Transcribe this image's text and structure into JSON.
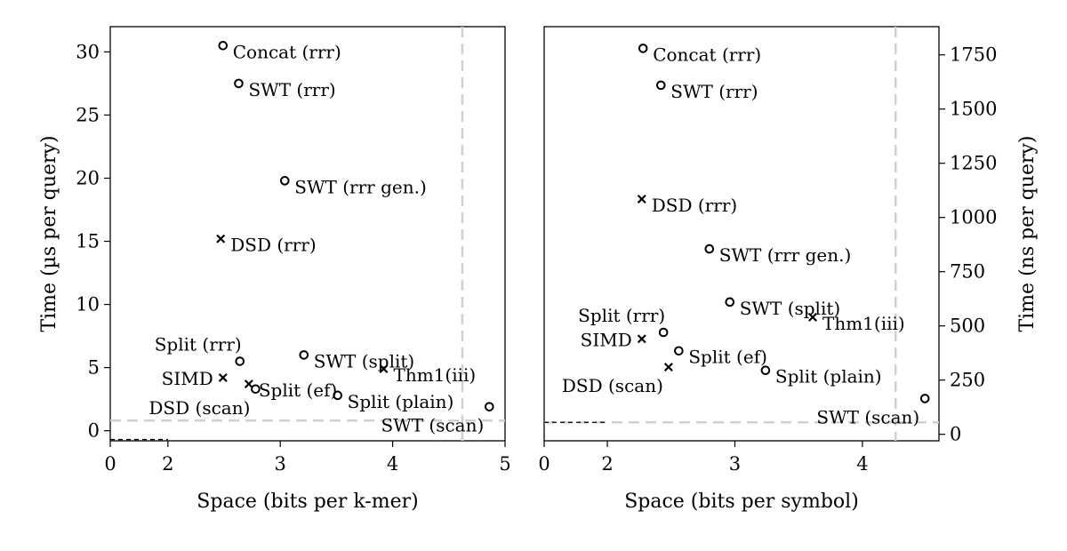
{
  "chart_data": [
    {
      "type": "scatter",
      "xlabel": "Space (bits per k-mer)",
      "ylabel": "Time (µs per query)",
      "xlim": [
        0,
        5
      ],
      "ylim": [
        -0.8,
        32
      ],
      "xticks": [
        "0",
        "2",
        "3",
        "4",
        "5"
      ],
      "yticks": [
        "0",
        "5",
        "10",
        "15",
        "20",
        "25",
        "30"
      ],
      "grid": false,
      "reference_lines": {
        "x": 4.62,
        "y": 0.8
      },
      "baseline_dashes": {
        "x_from": 0,
        "x_to": 2,
        "y": -0.7
      },
      "points": [
        {
          "x": 2.49,
          "y": 30.5,
          "label": "Concat (rrr)",
          "marker": "o",
          "label_pos": "right"
        },
        {
          "x": 2.63,
          "y": 27.5,
          "label": "SWT (rrr)",
          "marker": "o",
          "label_pos": "right"
        },
        {
          "x": 3.04,
          "y": 19.8,
          "label": "SWT (rrr gen.)",
          "marker": "o",
          "label_pos": "right"
        },
        {
          "x": 2.47,
          "y": 15.2,
          "label": "DSD (rrr)",
          "marker": "x",
          "label_pos": "right"
        },
        {
          "x": 2.64,
          "y": 5.5,
          "label": "Split (rrr)",
          "marker": "o",
          "label_pos": "above-left"
        },
        {
          "x": 3.21,
          "y": 6.0,
          "label": "SWT (split)",
          "marker": "o",
          "label_pos": "right"
        },
        {
          "x": 3.92,
          "y": 4.9,
          "label": "Thm1(iii)",
          "marker": "x",
          "label_pos": "right"
        },
        {
          "x": 2.49,
          "y": 4.2,
          "label": "SIMD",
          "marker": "x",
          "label_pos": "left"
        },
        {
          "x": 2.72,
          "y": 3.7,
          "label": "Split (ef)",
          "marker": "x",
          "label_pos": "right"
        },
        {
          "x": 2.78,
          "y": 3.3,
          "label": "DSD (scan)",
          "marker": "o",
          "label_pos": "below-left"
        },
        {
          "x": 3.51,
          "y": 2.8,
          "label": "Split (plain)",
          "marker": "o",
          "label_pos": "right"
        },
        {
          "x": 4.86,
          "y": 1.9,
          "label": "SWT (scan)",
          "marker": "o",
          "label_pos": "below-left"
        }
      ]
    },
    {
      "type": "scatter",
      "xlabel": "Space (bits per symbol)",
      "ylabel": "Time (ns per query)",
      "xlim": [
        0,
        4.6
      ],
      "ylim": [
        -30,
        1880
      ],
      "xticks": [
        "0",
        "2",
        "3",
        "4"
      ],
      "yticks": [
        "0",
        "250",
        "500",
        "750",
        "1000",
        "1250",
        "1500",
        "1750"
      ],
      "grid": false,
      "reference_lines": {
        "x": 4.26,
        "y": 55
      },
      "baseline_dashes": {
        "x_from": 0,
        "x_to": 2,
        "y": 55
      },
      "points": [
        {
          "x": 2.28,
          "y": 1780,
          "label": "Concat (rrr)",
          "marker": "o",
          "label_pos": "right"
        },
        {
          "x": 2.42,
          "y": 1610,
          "label": "SWT (rrr)",
          "marker": "o",
          "label_pos": "right"
        },
        {
          "x": 2.27,
          "y": 1085,
          "label": "DSD (rrr)",
          "marker": "x",
          "label_pos": "right"
        },
        {
          "x": 2.8,
          "y": 855,
          "label": "SWT (rrr gen.)",
          "marker": "o",
          "label_pos": "right"
        },
        {
          "x": 2.96,
          "y": 610,
          "label": "SWT (split)",
          "marker": "o",
          "label_pos": "right"
        },
        {
          "x": 3.61,
          "y": 540,
          "label": "Thm1(iii)",
          "marker": "x",
          "label_pos": "right"
        },
        {
          "x": 2.44,
          "y": 470,
          "label": "Split (rrr)",
          "marker": "o",
          "label_pos": "above-left"
        },
        {
          "x": 2.27,
          "y": 440,
          "label": "SIMD",
          "marker": "x",
          "label_pos": "left"
        },
        {
          "x": 2.56,
          "y": 385,
          "label": "Split (ef)",
          "marker": "o",
          "label_pos": "right"
        },
        {
          "x": 2.48,
          "y": 310,
          "label": "DSD (scan)",
          "marker": "x",
          "label_pos": "below-left"
        },
        {
          "x": 3.24,
          "y": 295,
          "label": "Split (plain)",
          "marker": "o",
          "label_pos": "right"
        },
        {
          "x": 4.49,
          "y": 165,
          "label": "SWT (scan)",
          "marker": "o",
          "label_pos": "below-left"
        }
      ]
    }
  ]
}
